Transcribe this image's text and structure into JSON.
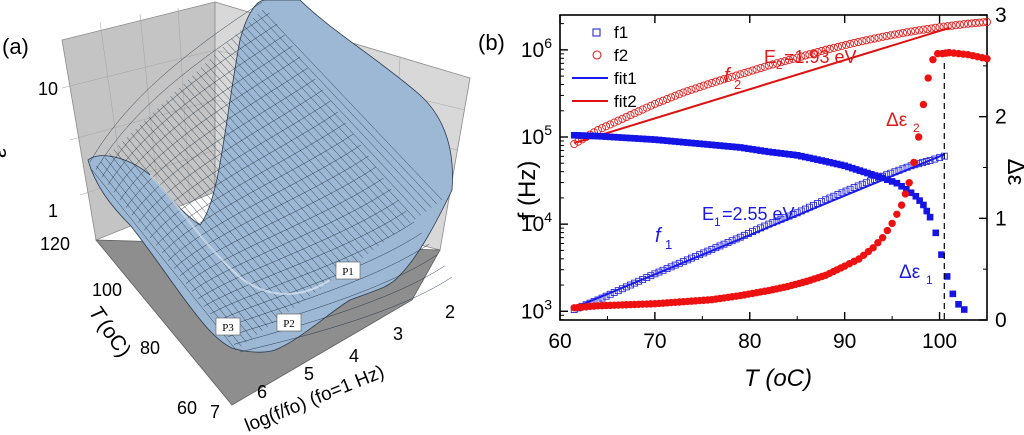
{
  "chart_data": [
    {
      "panel_label": "(a)",
      "type": "surface3d",
      "zlabel": "ε''",
      "xlabel": "log(f/fo) (fo=1 Hz)",
      "ylabel_main": "T",
      "ylabel_unit": "(oC)",
      "x_ticks": [
        "2",
        "3",
        "4",
        "5",
        "6",
        "7"
      ],
      "y_ticks": [
        "120",
        "100",
        "80",
        "60"
      ],
      "z_ticks": [
        "10",
        "1"
      ],
      "peak_labels": [
        "P1",
        "P2",
        "P3"
      ]
    },
    {
      "panel_label": "(b)",
      "type": "scatter",
      "xlabel": "T (oC)",
      "ylabel_left": "f (Hz)",
      "ylabel_right": "Δε",
      "xlim": [
        60,
        105
      ],
      "ylim_left_log10": [
        2.9,
        6.4
      ],
      "ylim_right": [
        0,
        3
      ],
      "y_scale_left": "log",
      "x_ticks": [
        "60",
        "70",
        "80",
        "90",
        "100"
      ],
      "y_ticks_left": [
        {
          "base": "10",
          "exp": "3",
          "log": 3
        },
        {
          "base": "10",
          "exp": "4",
          "log": 4
        },
        {
          "base": "10",
          "exp": "5",
          "log": 5
        },
        {
          "base": "10",
          "exp": "6",
          "log": 6
        }
      ],
      "y_ticks_right": [
        0,
        1,
        2,
        3
      ],
      "vline_x": 100.5,
      "legend": {
        "placement": "top-left",
        "entries": [
          "f1",
          "f2",
          "fit1",
          "fit2"
        ]
      },
      "annotations": {
        "f2_main": "f",
        "f2_sub": "2",
        "E2_main": "E",
        "E2_sub": "2",
        "E2_value": "=1.93 eV",
        "f1_main": "f",
        "f1_sub": "1",
        "E1_main": "E",
        "E1_sub": "1",
        "E1_value": "=2.55 eV",
        "de2_main": "Δε",
        "de2_sub": "2",
        "de1_main": "Δε",
        "de1_sub": "1"
      },
      "series": [
        {
          "name": "f1",
          "marker": "open-square",
          "color": "#2b2bd8",
          "axis": "left",
          "x": [
            61.5,
            64,
            67,
            70,
            73,
            76,
            79,
            82,
            85,
            88,
            91,
            94,
            97,
            99,
            100.5
          ],
          "log_y": [
            3.02,
            3.13,
            3.28,
            3.43,
            3.57,
            3.71,
            3.85,
            4.0,
            4.13,
            4.28,
            4.42,
            4.55,
            4.67,
            4.73,
            4.78
          ]
        },
        {
          "name": "f2",
          "marker": "open-circle",
          "color": "#e02020",
          "axis": "left",
          "x": [
            61.5,
            64,
            67,
            70,
            73,
            76,
            79,
            82,
            85,
            88,
            91,
            94,
            97,
            100,
            103,
            105
          ],
          "log_y": [
            4.92,
            5.08,
            5.23,
            5.38,
            5.51,
            5.62,
            5.72,
            5.82,
            5.91,
            6.0,
            6.08,
            6.15,
            6.21,
            6.26,
            6.3,
            6.32
          ]
        },
        {
          "name": "fit1",
          "line": "solid",
          "color": "#1a1aee",
          "axis": "left",
          "x": [
            61.5,
            100.5
          ],
          "log_y": [
            3.04,
            4.8
          ]
        },
        {
          "name": "fit2",
          "line": "solid",
          "color": "#dd1111",
          "axis": "left",
          "x": [
            61.5,
            101
          ],
          "log_y": [
            4.93,
            6.25
          ]
        },
        {
          "name": "f1 (filled)",
          "marker": "filled-square",
          "color": "#1414e6",
          "axis": "left",
          "x": [
            61.5,
            64,
            67,
            70,
            73,
            76,
            79,
            82,
            85,
            88,
            90,
            92,
            94,
            95.5,
            96.5,
            97.5,
            98.3,
            99,
            99.6,
            100.2,
            100.8,
            101.4,
            102,
            102.6
          ],
          "log_y": [
            5.02,
            5.01,
            4.99,
            4.97,
            4.94,
            4.91,
            4.88,
            4.83,
            4.79,
            4.72,
            4.67,
            4.6,
            4.53,
            4.47,
            4.4,
            4.32,
            4.22,
            4.08,
            3.9,
            3.65,
            3.4,
            3.2,
            3.08,
            3.02
          ]
        },
        {
          "name": "Δε (filled)",
          "marker": "filled-circle",
          "color": "#ee1111",
          "axis": "right",
          "x": [
            61.5,
            64,
            67,
            70,
            73,
            76,
            79,
            82,
            84,
            86,
            88,
            90,
            91.5,
            93,
            94,
            95,
            96,
            96.8,
            97.3,
            97.8,
            98.3,
            98.8,
            99.3,
            99.8,
            100.3,
            101,
            102,
            103,
            104,
            105
          ],
          "y": [
            0.12,
            0.14,
            0.15,
            0.16,
            0.18,
            0.2,
            0.24,
            0.29,
            0.33,
            0.38,
            0.44,
            0.53,
            0.6,
            0.71,
            0.81,
            0.95,
            1.13,
            1.35,
            1.55,
            1.8,
            2.12,
            2.38,
            2.56,
            2.62,
            2.62,
            2.63,
            2.62,
            2.61,
            2.59,
            2.57
          ]
        }
      ]
    }
  ]
}
